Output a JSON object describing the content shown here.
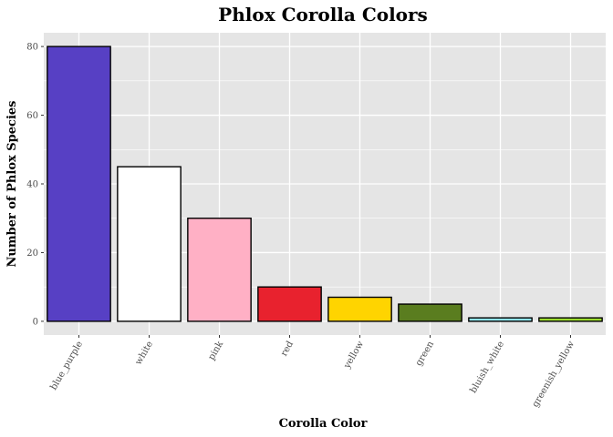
{
  "chart_data": {
    "type": "bar",
    "title": "Phlox Corolla Colors",
    "xlabel": "Corolla Color",
    "ylabel": "Number of Phlox Species",
    "categories": [
      "blue_purple",
      "white",
      "pink",
      "red",
      "yellow",
      "green",
      "bluish_white",
      "greenish_yellow"
    ],
    "values": [
      80,
      45,
      30,
      10,
      7,
      5,
      1,
      1
    ],
    "bar_colors": [
      "#5740c4",
      "#ffffff",
      "#ffb0c5",
      "#e8222e",
      "#ffd400",
      "#5a7d1f",
      "#8fe3ec",
      "#9bdc2e"
    ],
    "ylim": [
      -4,
      84
    ],
    "yticks": [
      0,
      20,
      40,
      60,
      80
    ],
    "panel_color": "#e5e5e5",
    "grid_color": "#ffffff",
    "grid": true,
    "legend": "none"
  }
}
